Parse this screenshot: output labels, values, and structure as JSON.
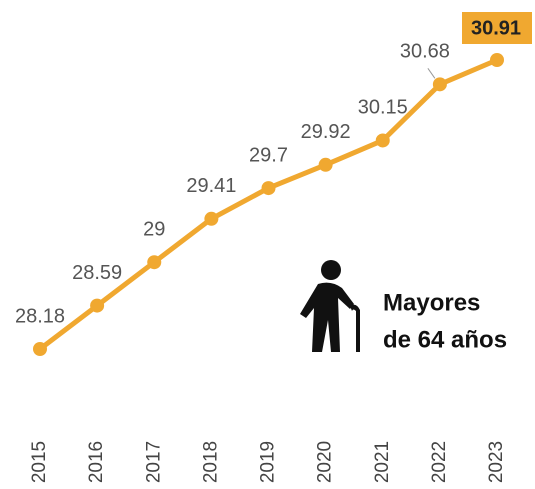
{
  "chart_data": {
    "type": "line",
    "categories": [
      "2015",
      "2016",
      "2017",
      "2018",
      "2019",
      "2020",
      "2021",
      "2022",
      "2023"
    ],
    "series": [
      {
        "name": null,
        "color": "#f0a830",
        "values": [
          28.18,
          28.59,
          29,
          29.41,
          29.7,
          29.92,
          30.15,
          30.68,
          30.91
        ]
      }
    ],
    "annotation": [
      "Mayores",
      "de 64 años"
    ]
  }
}
